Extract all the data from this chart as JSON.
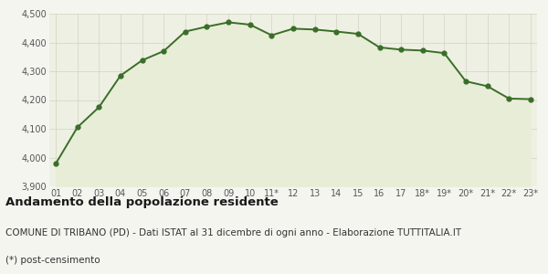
{
  "labels": [
    "01",
    "02",
    "03",
    "04",
    "05",
    "06",
    "07",
    "08",
    "09",
    "10",
    "11*",
    "12",
    "13",
    "14",
    "15",
    "16",
    "17",
    "18*",
    "19*",
    "20*",
    "21*",
    "22*",
    "23*"
  ],
  "values": [
    3979,
    4105,
    4175,
    4285,
    4338,
    4370,
    4438,
    4455,
    4470,
    4462,
    4425,
    4448,
    4445,
    4438,
    4430,
    4383,
    4375,
    4372,
    4363,
    4265,
    4248,
    4205,
    4203
  ],
  "line_color": "#3a6e28",
  "fill_color": "#e8edd8",
  "marker_color": "#3a6e28",
  "bg_color": "#f5f5f0",
  "plot_bg_color": "#eef0e4",
  "grid_color": "#d0d4c0",
  "ylim_min": 3900,
  "ylim_max": 4500,
  "yticks": [
    3900,
    4000,
    4100,
    4200,
    4300,
    4400,
    4500
  ],
  "title": "Andamento della popolazione residente",
  "subtitle": "COMUNE DI TRIBANO (PD) - Dati ISTAT al 31 dicembre di ogni anno - Elaborazione TUTTITALIA.IT",
  "footnote": "(*) post-censimento",
  "title_fontsize": 9.5,
  "subtitle_fontsize": 7.5,
  "footnote_fontsize": 7.5,
  "tick_fontsize": 7,
  "line_width": 1.4,
  "marker_size": 3.5
}
